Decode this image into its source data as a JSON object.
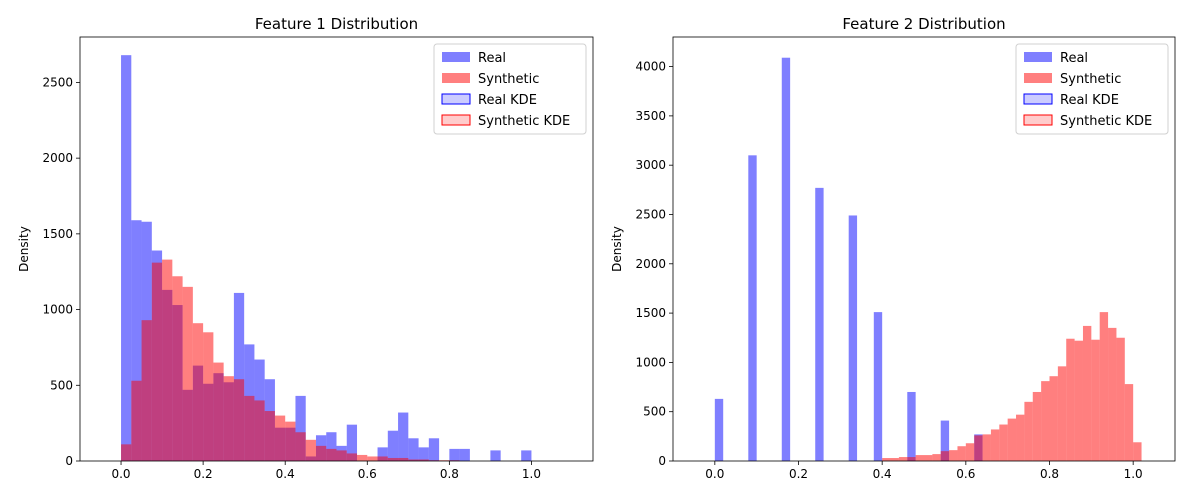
{
  "colors": {
    "real": "#0000ff",
    "synthetic": "#ff0000",
    "overlap": "#bf3f7f"
  },
  "chart_data": [
    {
      "type": "histogram",
      "title": "Feature 1 Distribution",
      "ylabel": "Density",
      "xlim": [
        -0.1,
        1.15
      ],
      "ylim": [
        0,
        2800
      ],
      "xticks": [
        "0.0",
        "0.2",
        "0.4",
        "0.6",
        "0.8",
        "1.0"
      ],
      "yticks": [
        "0",
        "500",
        "1000",
        "1500",
        "2000",
        "2500"
      ],
      "bin_start": 0,
      "bin_width": 0.025,
      "grid": false,
      "legend": "top-right",
      "legend_items": [
        "Real",
        "Synthetic",
        "Real KDE",
        "Synthetic KDE"
      ],
      "series": [
        {
          "name": "Real",
          "values": [
            2680,
            1590,
            1580,
            1390,
            1130,
            1030,
            470,
            630,
            510,
            580,
            520,
            1110,
            770,
            670,
            540,
            220,
            220,
            430,
            30,
            170,
            190,
            100,
            240,
            0,
            0,
            90,
            200,
            320,
            150,
            90,
            150,
            0,
            80,
            80,
            0,
            0,
            70,
            0,
            0,
            70
          ]
        },
        {
          "name": "Synthetic",
          "values": [
            110,
            530,
            930,
            1310,
            1330,
            1220,
            1150,
            910,
            850,
            650,
            560,
            540,
            430,
            400,
            330,
            300,
            260,
            190,
            140,
            100,
            80,
            70,
            50,
            40,
            30,
            30,
            20,
            20,
            10,
            10,
            5,
            5,
            5,
            0,
            0,
            0,
            0,
            0,
            0,
            0
          ]
        }
      ]
    },
    {
      "type": "histogram",
      "title": "Feature 2 Distribution",
      "ylabel": "Density",
      "xlim": [
        -0.1,
        1.1
      ],
      "ylim": [
        0,
        4300
      ],
      "xticks": [
        "0.0",
        "0.2",
        "0.4",
        "0.6",
        "0.8",
        "1.0"
      ],
      "yticks": [
        "0",
        "500",
        "1000",
        "1500",
        "2000",
        "2500",
        "3000",
        "3500",
        "4000"
      ],
      "bin_start": 0,
      "bin_width": 0.02,
      "grid": false,
      "legend": "top-right",
      "legend_items": [
        "Real",
        "Synthetic",
        "Real KDE",
        "Synthetic KDE"
      ],
      "series": [
        {
          "name": "Real",
          "values": [
            630,
            0,
            0,
            0,
            3100,
            0,
            0,
            0,
            4090,
            0,
            0,
            0,
            2770,
            0,
            0,
            0,
            2490,
            0,
            0,
            1510,
            0,
            0,
            0,
            700,
            0,
            0,
            0,
            410,
            0,
            0,
            0,
            270,
            0,
            0,
            0,
            0,
            0,
            0,
            0,
            0,
            0,
            0,
            0,
            0,
            0,
            0,
            0,
            0,
            0,
            0
          ]
        },
        {
          "name": "Synthetic",
          "values": [
            0,
            0,
            0,
            0,
            0,
            0,
            0,
            0,
            0,
            0,
            0,
            0,
            0,
            0,
            0,
            0,
            0,
            0,
            0,
            0,
            30,
            30,
            40,
            40,
            60,
            60,
            70,
            100,
            110,
            150,
            180,
            260,
            270,
            320,
            370,
            430,
            470,
            600,
            700,
            810,
            860,
            960,
            1240,
            1220,
            1370,
            1230,
            1510,
            1350,
            1250,
            780,
            190
          ]
        }
      ]
    }
  ]
}
